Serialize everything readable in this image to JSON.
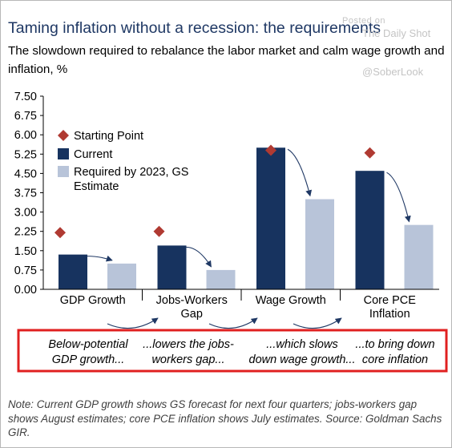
{
  "title": "Taming inflation without a recession: the requirements",
  "subtitle": "The slowdown required to rebalance the labor market and calm wage growth and inflation, %",
  "watermark": {
    "posted": "Posted on",
    "source": "The Daily Shot",
    "handle": "@SoberLook"
  },
  "chart_data": {
    "type": "bar",
    "categories": [
      "GDP Growth",
      "Jobs-Workers Gap",
      "Wage Growth",
      "Core PCE Inflation"
    ],
    "category_lines": [
      [
        "GDP Growth"
      ],
      [
        "Jobs-Workers",
        "Gap"
      ],
      [
        "Wage Growth"
      ],
      [
        "Core PCE",
        "Inflation"
      ]
    ],
    "series": [
      {
        "name": "Current",
        "values": [
          1.35,
          1.7,
          5.5,
          4.6
        ],
        "color": "#17335f"
      },
      {
        "name": "Required by 2023, GS Estimate",
        "values": [
          1.0,
          0.75,
          3.5,
          2.5
        ],
        "color": "#b8c4d9"
      }
    ],
    "markers": {
      "name": "Starting Point",
      "values": [
        2.2,
        2.25,
        5.4,
        5.3
      ],
      "color": "#b03a32"
    },
    "legend": [
      {
        "label": "Starting Point",
        "kind": "diamond",
        "color": "#b03a32"
      },
      {
        "label": "Current",
        "kind": "square",
        "color": "#17335f"
      },
      {
        "label_lines": [
          "Required by 2023, GS",
          "Estimate"
        ],
        "kind": "square",
        "color": "#b8c4d9"
      }
    ],
    "legend_position": "top-left",
    "ylim": [
      0,
      7.5
    ],
    "yticks": [
      "7.50",
      "6.75",
      "6.00",
      "5.25",
      "4.50",
      "3.75",
      "3.00",
      "2.25",
      "1.50",
      "0.75",
      "0.00"
    ],
    "grid": false,
    "arrow_color": "#1f3864"
  },
  "callout": {
    "border_color": "#e02020",
    "items": [
      [
        "Below-potential",
        "GDP growth..."
      ],
      [
        "...lowers the jobs-",
        "workers gap..."
      ],
      [
        "...which slows",
        "down wage growth..."
      ],
      [
        "...to bring down",
        "core inflation"
      ]
    ]
  },
  "note": "Note: Current GDP growth shows GS forecast for next four quarters; jobs-workers gap shows August estimates; core PCE inflation shows July estimates. Source: Goldman Sachs GIR."
}
